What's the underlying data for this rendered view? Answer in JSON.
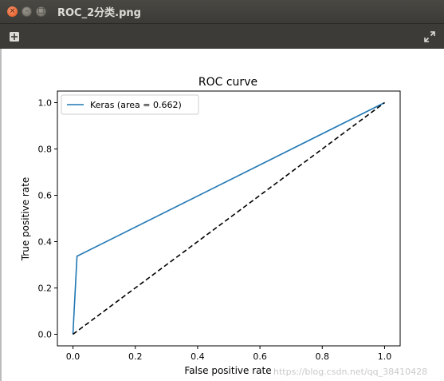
{
  "window": {
    "title": "ROC_2分类.png",
    "close_glyph": "×",
    "min_glyph": "–",
    "max_glyph": "□"
  },
  "toolbar": {
    "new_icon": "new-image-icon",
    "fullscreen_icon": "fullscreen-icon"
  },
  "watermark": "https://blog.csdn.net/qq_38410428",
  "chart_data": {
    "type": "line",
    "title": "ROC curve",
    "xlabel": "False positive rate",
    "ylabel": "True positive rate",
    "xlim": [
      -0.05,
      1.05
    ],
    "ylim": [
      -0.05,
      1.05
    ],
    "x_ticks": [
      "0.0",
      "0.2",
      "0.4",
      "0.6",
      "0.8",
      "1.0"
    ],
    "y_ticks": [
      "0.0",
      "0.2",
      "0.4",
      "0.6",
      "0.8",
      "1.0"
    ],
    "legend_placement": "top-left",
    "grid": false,
    "series": [
      {
        "name": "Keras (area = 0.662)",
        "color": "#1f77b4",
        "style": "solid",
        "x": [
          0.0,
          0.013,
          1.0
        ],
        "y": [
          0.0,
          0.337,
          1.0
        ]
      },
      {
        "color": "#000000",
        "style": "dashed",
        "x": [
          0.0,
          1.0
        ],
        "y": [
          0.0,
          1.0
        ]
      }
    ]
  }
}
